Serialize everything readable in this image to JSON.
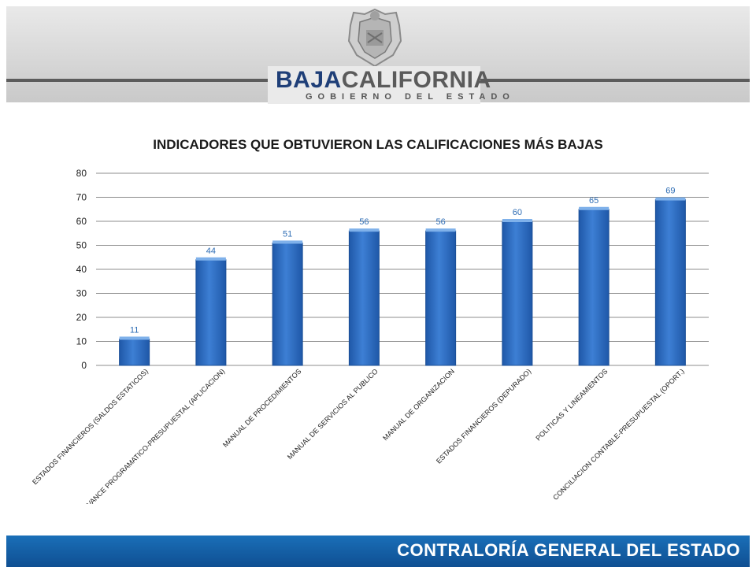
{
  "header": {
    "logo_baja": "BAJA",
    "logo_california": "CALIFORNIA",
    "logo_subtitle": "GOBIERNO DEL ESTADO",
    "crest_icon": "state-crest-icon"
  },
  "footer": {
    "text": "CONTRALORÍA GENERAL DEL ESTADO"
  },
  "colors": {
    "bar": "#3d7fd4",
    "bar_dark": "#1f58a8",
    "footer": "#1565b0",
    "label": "#2e6db5"
  },
  "chart_data": {
    "type": "bar",
    "title": "INDICADORES QUE OBTUVIERON LAS CALIFICACIONES MÁS BAJAS",
    "categories": [
      "ESTADOS FINANCIEROS (SALDOS ESTATICOS)",
      "AVANCE PROGRAMATICO-PRESUPUESTAL (APLICACION)",
      "MANUAL DE PROCEDIMIENTOS",
      "MANUAL DE SERVICIOS AL PUBLICO",
      "MANUAL DE ORGANIZACION",
      "ESTADOS FINANCIEROS (DEPURADO)",
      "POLITICAS Y LINEAMIENTOS",
      "CONCILIACION CONTABLE-PRESUPUESTAL (OPORT.)"
    ],
    "values": [
      11,
      44,
      51,
      56,
      56,
      60,
      65,
      69
    ],
    "value_labels": [
      "11",
      "44",
      "51",
      "56",
      "56",
      "60",
      "65",
      "69"
    ],
    "ylim": [
      0,
      80
    ],
    "yticks": [
      0,
      10,
      20,
      30,
      40,
      50,
      60,
      70,
      80
    ],
    "ytick_labels": [
      "0",
      "10",
      "20",
      "30",
      "40",
      "50",
      "60",
      "70",
      "80"
    ],
    "grid": true,
    "xlabel": "",
    "ylabel": ""
  }
}
